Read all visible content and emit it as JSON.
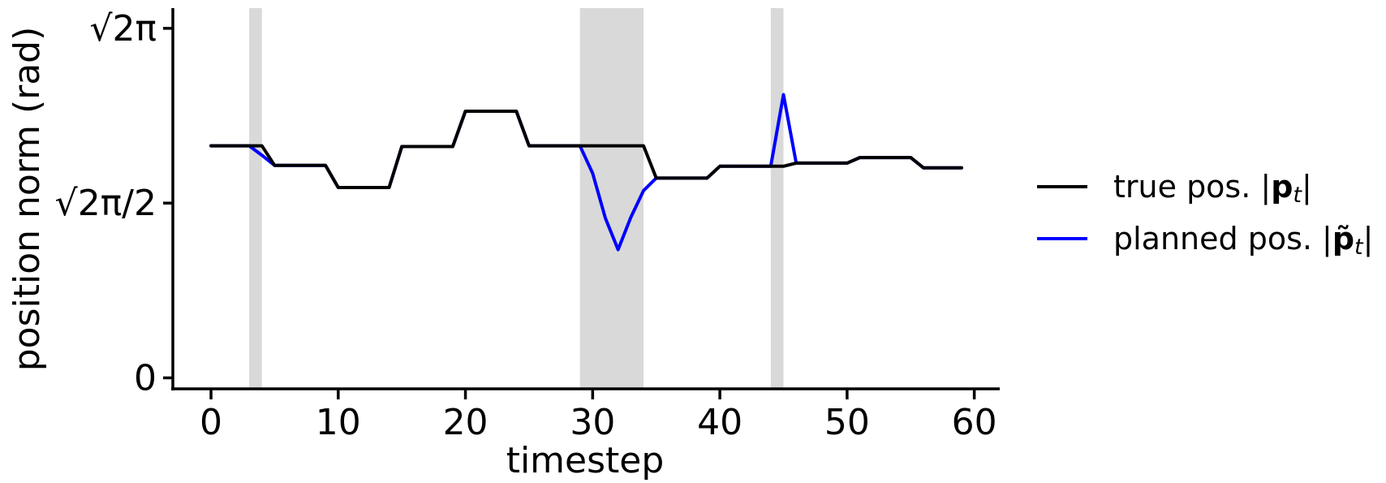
{
  "chart_data": {
    "type": "line",
    "xlabel": "timestep",
    "ylabel": "position norm (rad)",
    "xlim": [
      -3,
      62
    ],
    "ylim": [
      -0.15,
      4.7
    ],
    "xticks": [
      0,
      10,
      20,
      30,
      40,
      50,
      60
    ],
    "yticks": [
      {
        "value": 0,
        "label": "0"
      },
      {
        "value": 2.2214,
        "label": "√2π/2"
      },
      {
        "value": 4.4429,
        "label": "√2π"
      }
    ],
    "shaded_intervals": [
      [
        3,
        4
      ],
      [
        29,
        34
      ],
      [
        44,
        45
      ]
    ],
    "shaded_color": "#d9d9d9",
    "legend_position": "right",
    "series": [
      {
        "name": "true pos. |p_t|",
        "legend_prefix": "true pos. |",
        "legend_bold": "p",
        "legend_sub": "t",
        "legend_suffix": "|",
        "color": "#000000",
        "x": [
          0,
          1,
          2,
          3,
          4,
          5,
          6,
          7,
          8,
          9,
          10,
          11,
          12,
          13,
          14,
          15,
          16,
          17,
          18,
          19,
          20,
          21,
          22,
          23,
          24,
          25,
          26,
          27,
          28,
          29,
          30,
          31,
          32,
          33,
          34,
          35,
          36,
          37,
          38,
          39,
          40,
          41,
          42,
          43,
          44,
          45,
          46,
          47,
          48,
          49,
          50,
          51,
          52,
          53,
          54,
          55,
          56,
          57,
          58,
          59
        ],
        "values": [
          2.95,
          2.95,
          2.95,
          2.95,
          2.95,
          2.7,
          2.7,
          2.7,
          2.7,
          2.7,
          2.42,
          2.42,
          2.42,
          2.42,
          2.42,
          2.94,
          2.94,
          2.94,
          2.94,
          2.94,
          3.39,
          3.39,
          3.39,
          3.39,
          3.39,
          2.95,
          2.95,
          2.95,
          2.95,
          2.95,
          2.95,
          2.95,
          2.95,
          2.95,
          2.95,
          2.54,
          2.54,
          2.54,
          2.54,
          2.54,
          2.69,
          2.69,
          2.69,
          2.69,
          2.69,
          2.69,
          2.73,
          2.73,
          2.73,
          2.73,
          2.73,
          2.8,
          2.8,
          2.8,
          2.8,
          2.8,
          2.67,
          2.67,
          2.67,
          2.67
        ]
      },
      {
        "name": "planned pos. |p̃_t|",
        "legend_prefix": "planned pos. |",
        "legend_bold": "p̃",
        "legend_sub": "t",
        "legend_suffix": "|",
        "color": "#0000ff",
        "x": [
          0,
          1,
          2,
          3,
          4,
          5,
          6,
          7,
          8,
          9,
          10,
          11,
          12,
          13,
          14,
          15,
          16,
          17,
          18,
          19,
          20,
          21,
          22,
          23,
          24,
          25,
          26,
          27,
          28,
          29,
          30,
          31,
          32,
          33,
          34,
          35,
          36,
          37,
          38,
          39,
          40,
          41,
          42,
          43,
          44,
          45,
          46,
          47,
          48,
          49,
          50,
          51,
          52,
          53,
          54,
          55,
          56,
          57,
          58,
          59
        ],
        "values": [
          2.95,
          2.95,
          2.95,
          2.95,
          2.83,
          2.7,
          2.7,
          2.7,
          2.7,
          2.7,
          2.42,
          2.42,
          2.42,
          2.42,
          2.42,
          2.94,
          2.94,
          2.94,
          2.94,
          2.94,
          3.39,
          3.39,
          3.39,
          3.39,
          3.39,
          2.95,
          2.95,
          2.95,
          2.95,
          2.95,
          2.6,
          2.03,
          1.63,
          2.04,
          2.38,
          2.54,
          2.54,
          2.54,
          2.54,
          2.54,
          2.69,
          2.69,
          2.69,
          2.69,
          2.69,
          3.6,
          2.73,
          2.73,
          2.73,
          2.73,
          2.73,
          2.8,
          2.8,
          2.8,
          2.8,
          2.8,
          2.67,
          2.67,
          2.67,
          2.67
        ]
      }
    ]
  }
}
